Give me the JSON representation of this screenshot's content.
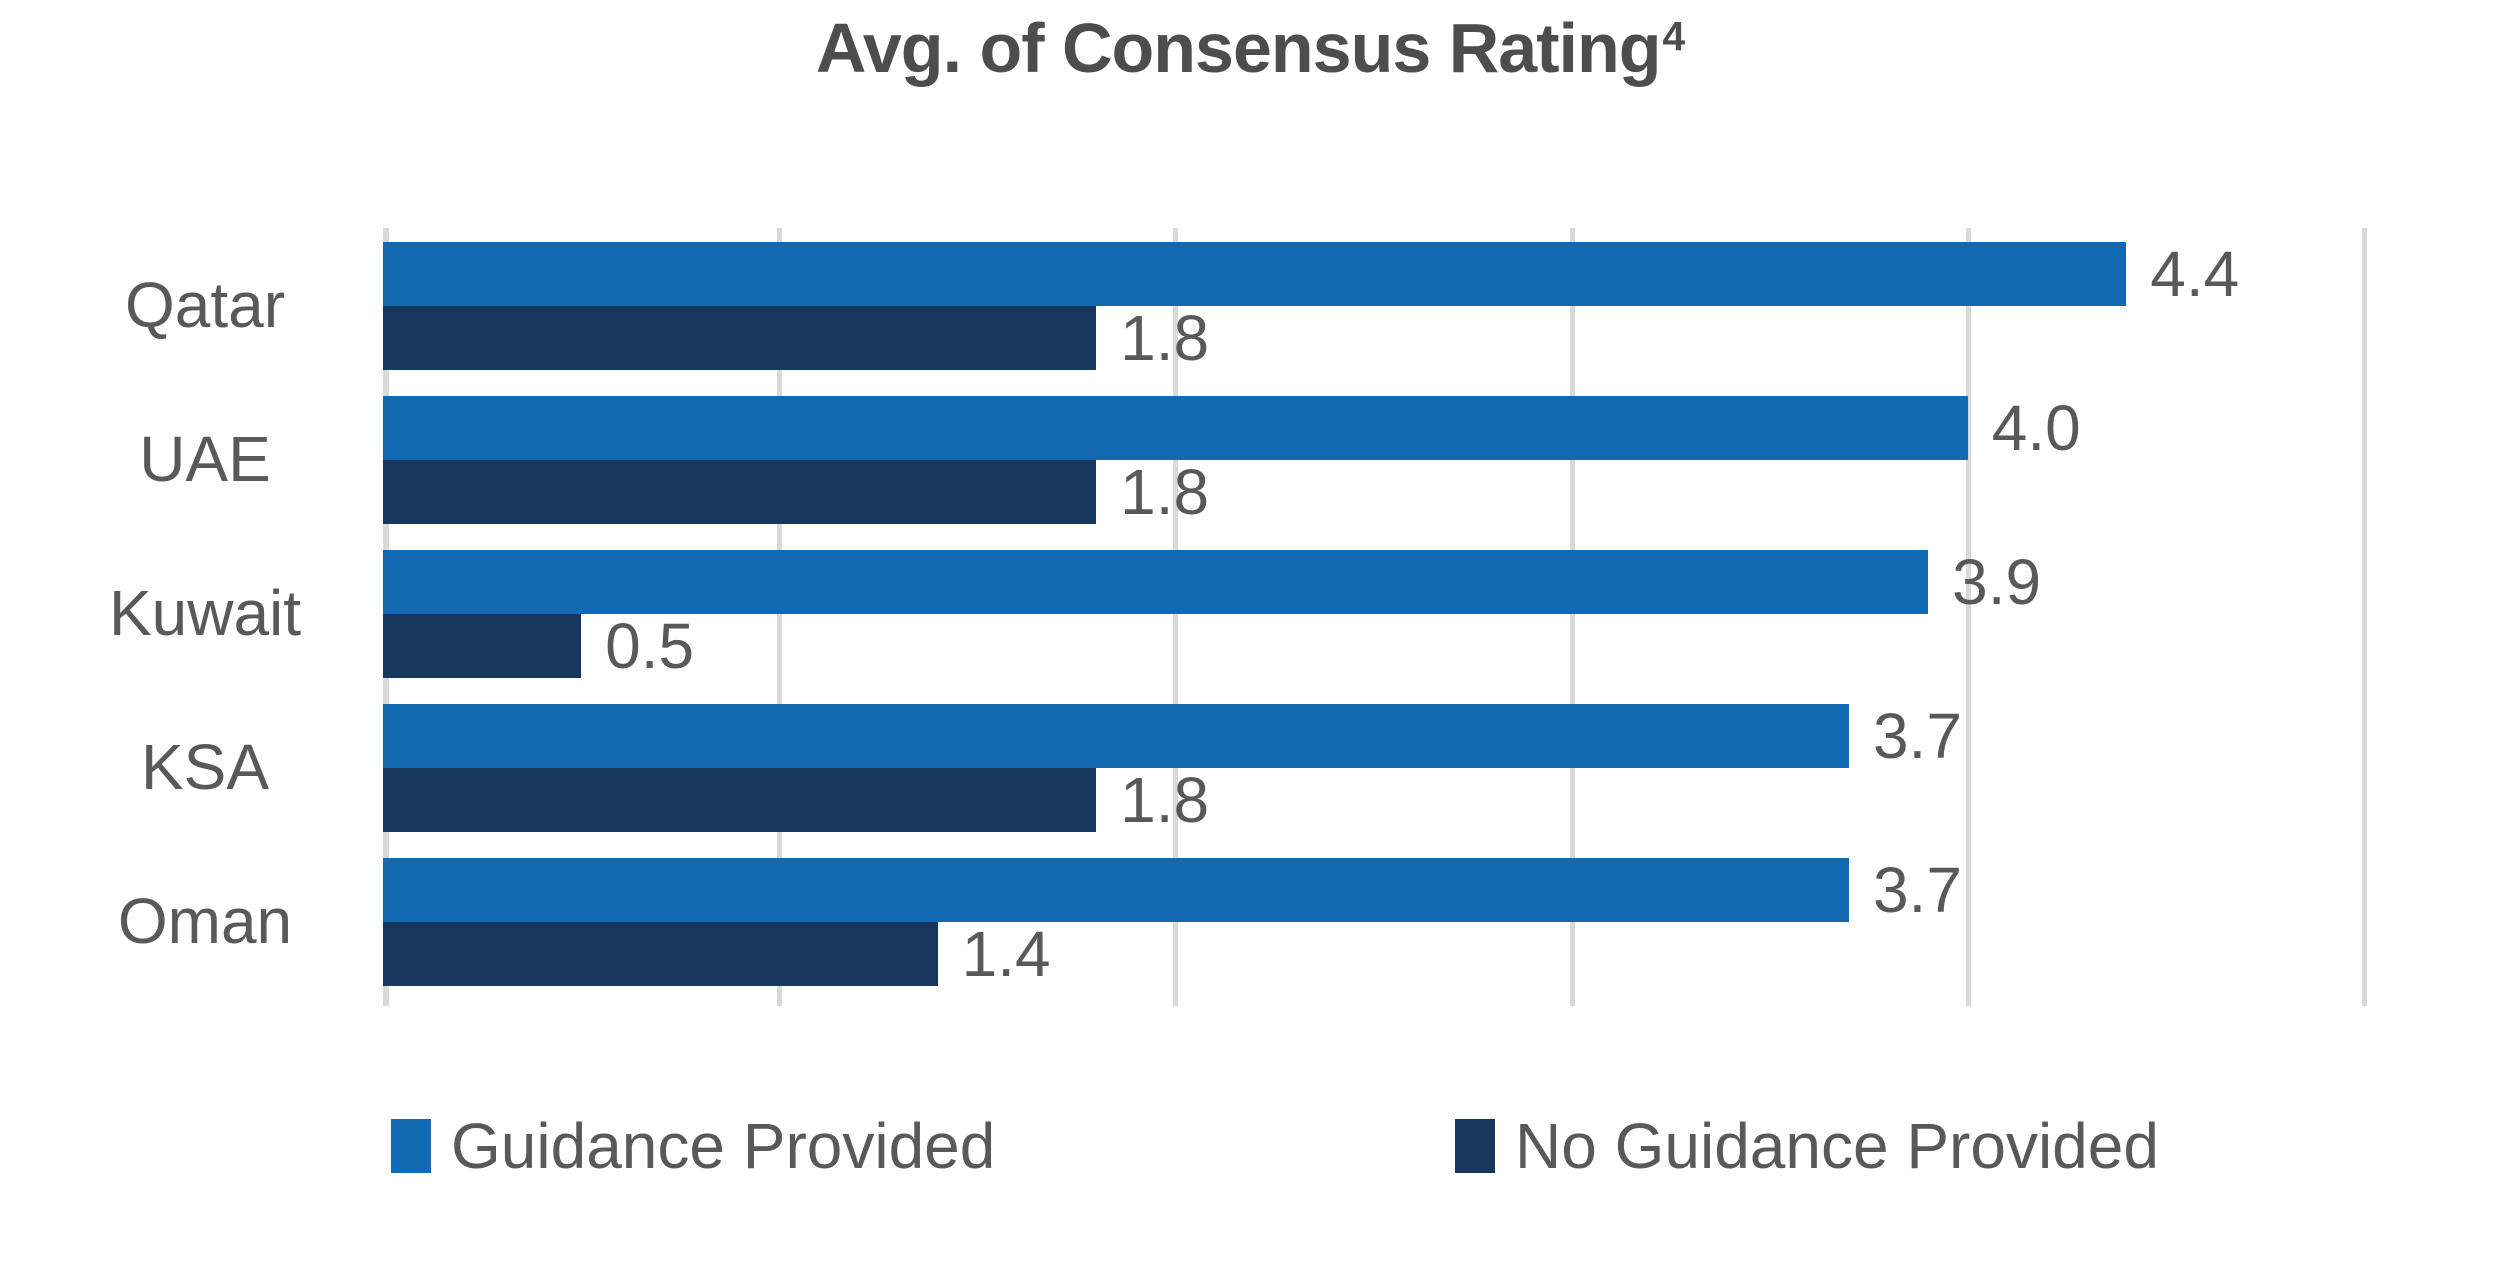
{
  "title": {
    "text": "Avg. of Consensus Rating",
    "superscript": "4"
  },
  "colors": {
    "guidance": "#1268b1",
    "no_guidance": "#17375e",
    "gridline": "#d9d9d9",
    "label_text": "#595959",
    "title_text": "#4d4d4d"
  },
  "legend": [
    {
      "label": "Guidance Provided",
      "color_key": "guidance"
    },
    {
      "label": "No Guidance Provided",
      "color_key": "no_guidance"
    }
  ],
  "chart_data": {
    "type": "bar",
    "orientation": "horizontal",
    "title": "Avg. of Consensus Rating⁴",
    "categories": [
      "Qatar",
      "UAE",
      "Kuwait",
      "KSA",
      "Oman"
    ],
    "series": [
      {
        "name": "Guidance Provided",
        "values": [
          4.4,
          4.0,
          3.9,
          3.7,
          3.7
        ]
      },
      {
        "name": "No Guidance Provided",
        "values": [
          1.8,
          1.8,
          0.5,
          1.8,
          1.4
        ]
      }
    ],
    "value_label_format": "0.0",
    "xlabel": "",
    "ylabel": "",
    "xlim": [
      0,
      5
    ],
    "gridline_interval": 1,
    "grid": true,
    "legend_position": "bottom"
  }
}
